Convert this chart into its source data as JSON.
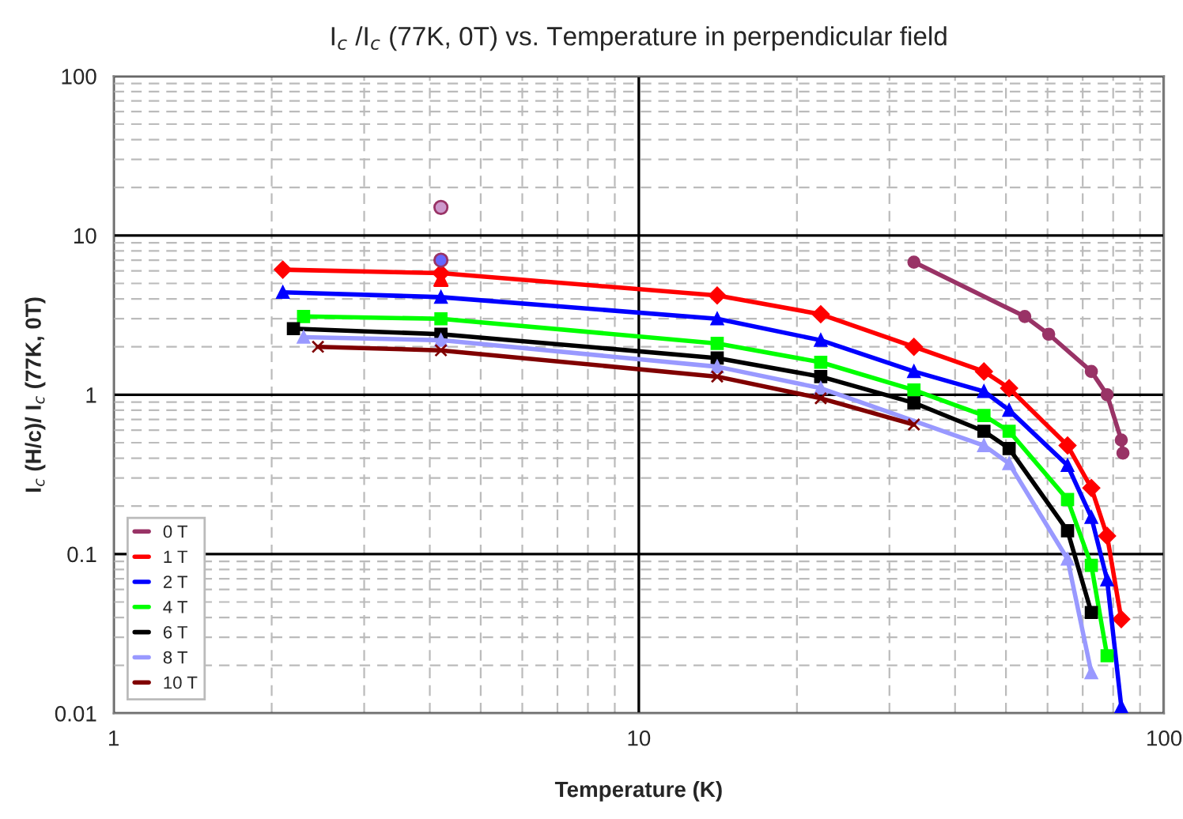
{
  "chart_data": {
    "type": "line",
    "title": "I$_{c}$ /I$_{c}$ (77K, 0T) vs. Temperature in perpendicular field",
    "xlabel": "Temperature (K)",
    "ylabel": "I$_{c}$ (H/c)/ I$_{c}$ (77K, 0T)",
    "log": "xy",
    "xlim": [
      1,
      100
    ],
    "ylim": [
      0.01,
      100
    ],
    "xticks": [
      1,
      10,
      100
    ],
    "yticks": [
      0.01,
      0.1,
      1,
      10,
      100
    ],
    "grid": true,
    "legend": "bottom left",
    "series": [
      {
        "name": "0 T",
        "color": "#993366",
        "marker": "circle",
        "x": [
          33.4,
          54.3,
          60.3,
          72.7,
          77.9,
          82.9,
          83.5
        ],
        "values": [
          6.8,
          3.1,
          2.4,
          1.4,
          1.0,
          0.52,
          0.43
        ]
      },
      {
        "name": "1 T",
        "color": "#ff0000",
        "marker": "diamond",
        "x": [
          2.1,
          4.2,
          14.1,
          22.2,
          33.4,
          45.4,
          50.7,
          65.5,
          72.7,
          77.9,
          82.9
        ],
        "values": [
          6.1,
          5.8,
          4.2,
          3.2,
          2.0,
          1.4,
          1.1,
          0.48,
          0.26,
          0.13,
          0.039
        ]
      },
      {
        "name": "2 T",
        "color": "#0000ff",
        "marker": "triangle",
        "x": [
          2.1,
          4.2,
          14.1,
          22.2,
          33.4,
          45.4,
          50.7,
          65.5,
          72.7,
          77.9,
          82.9
        ],
        "values": [
          4.4,
          4.1,
          3.0,
          2.2,
          1.4,
          1.05,
          0.8,
          0.36,
          0.17,
          0.069,
          0.011
        ]
      },
      {
        "name": "4 T",
        "color": "#00ff00",
        "marker": "square",
        "x": [
          2.3,
          4.2,
          14.1,
          22.2,
          33.4,
          45.4,
          50.7,
          65.5,
          72.7,
          77.9
        ],
        "values": [
          3.1,
          3.0,
          2.1,
          1.6,
          1.07,
          0.74,
          0.59,
          0.22,
          0.085,
          0.023
        ]
      },
      {
        "name": "6 T",
        "color": "#000000",
        "marker": "square",
        "x": [
          2.2,
          4.2,
          14.1,
          22.2,
          33.4,
          45.4,
          50.7,
          65.5,
          72.7
        ],
        "values": [
          2.6,
          2.4,
          1.7,
          1.3,
          0.89,
          0.59,
          0.46,
          0.14,
          0.043
        ]
      },
      {
        "name": "8 T",
        "color": "#9999ff",
        "marker": "triangle",
        "x": [
          2.3,
          4.2,
          14.1,
          22.2,
          45.4,
          50.7,
          65.5,
          72.7
        ],
        "values": [
          2.3,
          2.2,
          1.5,
          1.1,
          0.48,
          0.37,
          0.093,
          0.018
        ]
      },
      {
        "name": "10 T",
        "color": "#800000",
        "marker": "cross",
        "x": [
          2.45,
          4.2,
          14.1,
          22.2,
          33.4
        ],
        "values": [
          2.0,
          1.9,
          1.3,
          0.95,
          0.65
        ]
      },
      {
        "type": "scatter",
        "color": "#cc99cc",
        "marker": "circle",
        "x": [
          4.2
        ],
        "values": [
          15
        ]
      },
      {
        "type": "scatter",
        "color": "#6666ff",
        "marker": "circle",
        "x": [
          4.2
        ],
        "values": [
          7.0
        ]
      },
      {
        "type": "scatter",
        "color": "#ff0000",
        "marker": "triangle",
        "x": [
          4.2
        ],
        "values": [
          5.3
        ]
      }
    ]
  }
}
